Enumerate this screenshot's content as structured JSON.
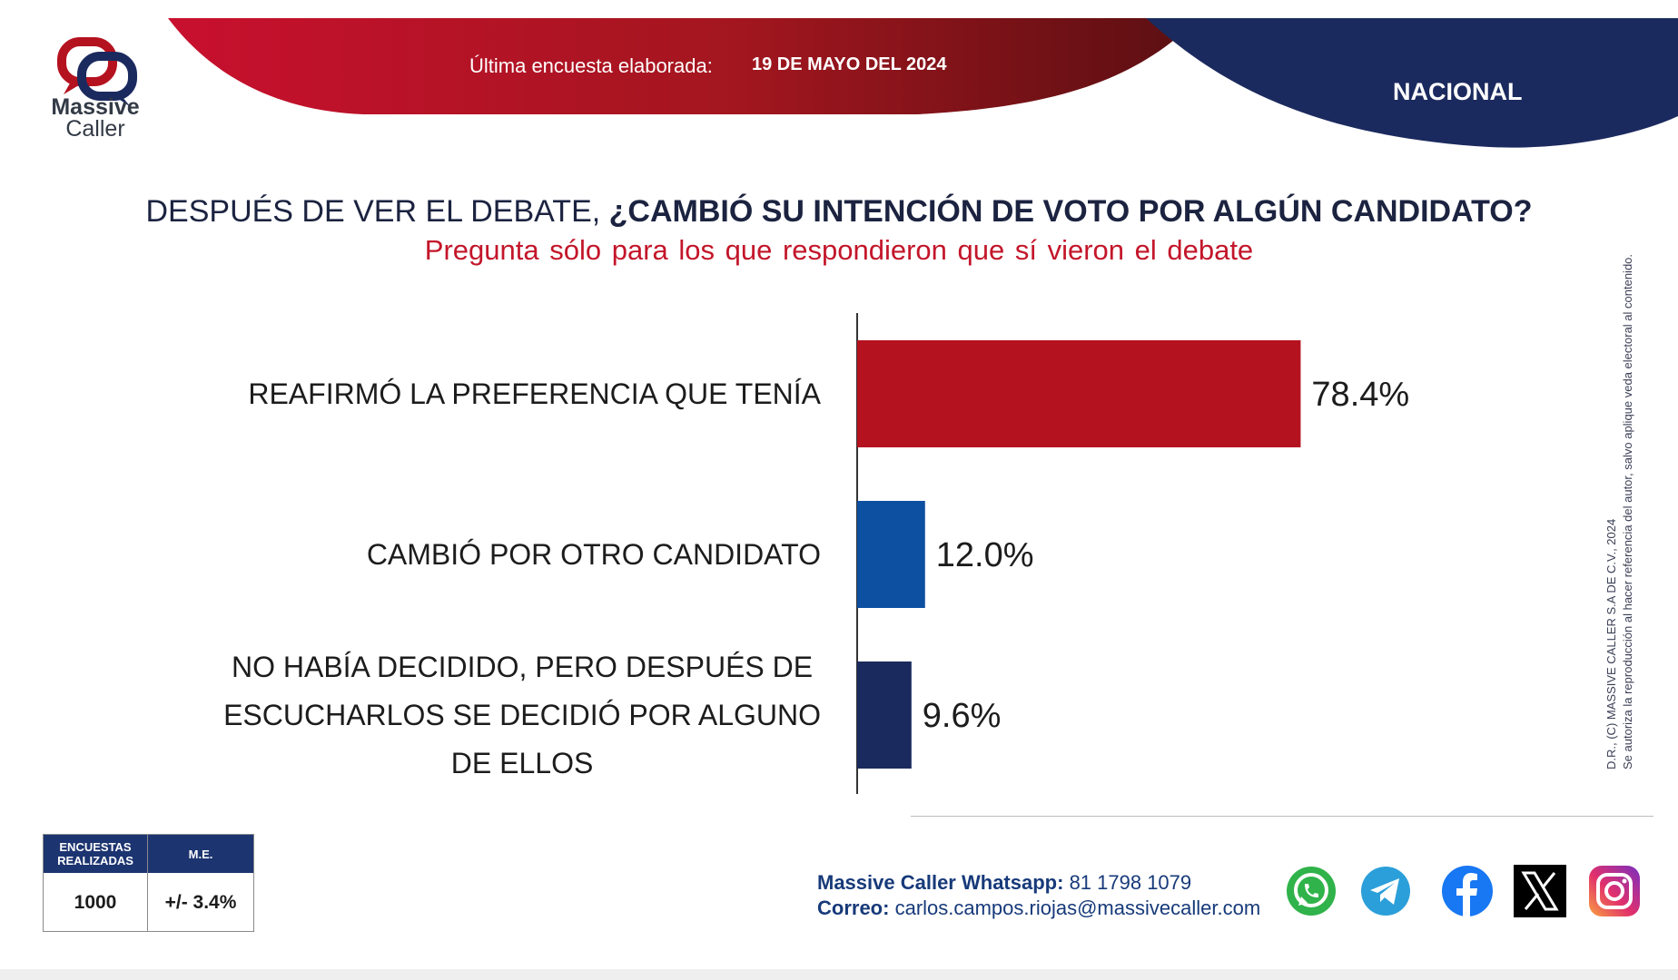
{
  "header": {
    "survey_label": "Última encuesta elaborada:",
    "survey_date": "19 DE MAYO DEL 2024",
    "region": "NACIONAL",
    "brand_red": "#b5121f",
    "brand_navy": "#1b2a5e"
  },
  "logo": {
    "name_line1": "Massive",
    "name_line2": "Caller"
  },
  "question": {
    "lead": "DESPUÉS DE VER EL DEBATE,",
    "bold": "¿CAMBIÓ SU INTENCIÓN DE VOTO POR ALGÚN CANDIDATO?",
    "note": "Pregunta sólo para los que respondieron que sí vieron el debate"
  },
  "chart_data": {
    "type": "bar",
    "orientation": "horizontal",
    "categories": [
      [
        "REAFIRMÓ LA PREFERENCIA QUE TENÍA"
      ],
      [
        "CAMBIÓ POR OTRO CANDIDATO"
      ],
      [
        "NO HABÍA DECIDIDO, PERO DESPUÉS DE",
        "ESCUCHARLOS SE DECIDIÓ POR ALGUNO",
        "DE ELLOS"
      ]
    ],
    "values": [
      78.4,
      12.0,
      9.6
    ],
    "value_labels": [
      "78.4%",
      "12.0%",
      "9.6%"
    ],
    "colors": [
      "#b5121f",
      "#0d4fa0",
      "#1b2a5e"
    ],
    "xlim": [
      0,
      100
    ],
    "grid": false
  },
  "copyright": {
    "line1": "D.R., (C) MASSIVE CALLER S.A DE C.V., 2024",
    "line2": "Se autoriza la reproducción al hacer referencia del autor, salvo aplique veda electoral al contenido."
  },
  "stats": {
    "surveys_header": "ENCUESTAS REALIZADAS",
    "surveys_value": "1000",
    "margin_header": "M.E.",
    "margin_value": "+/- 3.4%"
  },
  "contact": {
    "whatsapp_label": "Massive Caller Whatsapp:",
    "whatsapp_value": "81 1798 1079",
    "email_label": "Correo:",
    "email_value": "carlos.campos.riojas@massivecaller.com"
  },
  "social_icons": [
    "whatsapp-icon",
    "telegram-icon",
    "facebook-icon",
    "x-icon",
    "instagram-icon"
  ]
}
